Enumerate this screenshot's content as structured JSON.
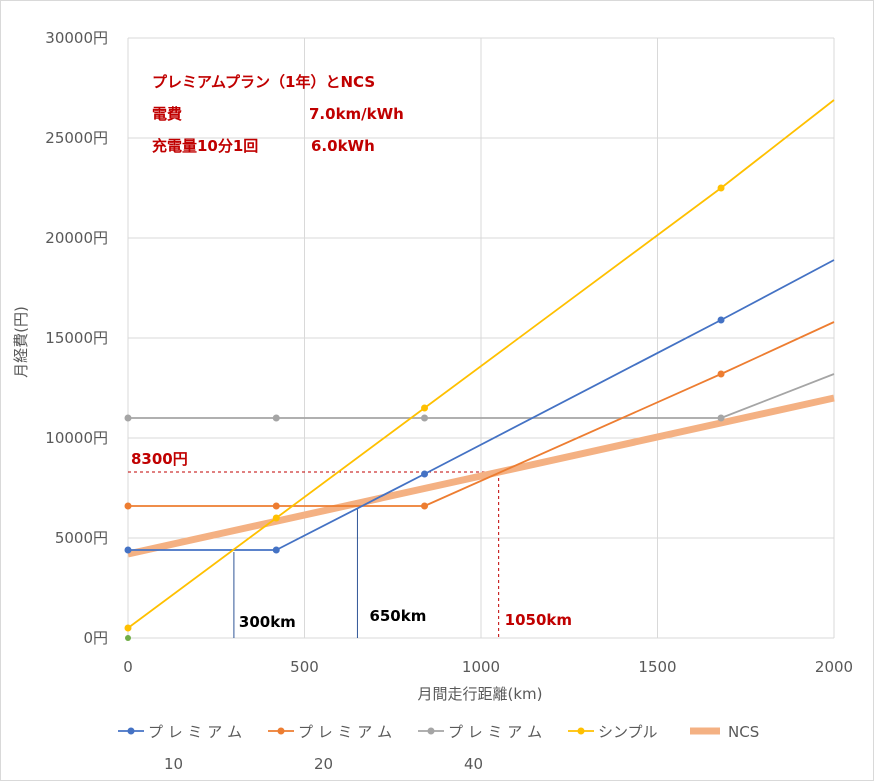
{
  "chart_data": {
    "type": "line",
    "title": "",
    "xlabel": "月間走行距離(km)",
    "ylabel": "月経費(円)",
    "xlim": [
      0,
      2000
    ],
    "ylim": [
      0,
      30000
    ],
    "x_ticks": [
      "0",
      "500",
      "1000",
      "1500",
      "2000"
    ],
    "y_ticks": [
      "0円",
      "5000円",
      "10000円",
      "15000円",
      "20000円",
      "25000円",
      "30000円"
    ],
    "grid": true,
    "notes": [
      {
        "label": "プレミアムプラン（1年）とNCS",
        "value": ""
      },
      {
        "label": "電費",
        "value": "7.0km/kWh"
      },
      {
        "label": "充電量10分1回",
        "value": "6.0kWh"
      }
    ],
    "annotations": [
      {
        "text": "300km",
        "x": 300,
        "y": 4300,
        "color": "#000000"
      },
      {
        "text": "650km",
        "x": 650,
        "y": 6500,
        "color": "#000000"
      },
      {
        "text": "1050km",
        "x": 1050,
        "y": 8300,
        "color": "#c00000"
      },
      {
        "text": "8300円",
        "x": 1050,
        "y": 8300,
        "color": "#c00000"
      }
    ],
    "series": [
      {
        "name": "プレミアム10",
        "color": "#4472c4",
        "width": 1.8,
        "marker": true,
        "points": [
          [
            0,
            4400
          ],
          [
            420,
            4400
          ],
          [
            840,
            8200
          ],
          [
            1680,
            15900
          ],
          [
            2000,
            18900
          ]
        ],
        "markers": [
          [
            0,
            4400
          ],
          [
            420,
            4400
          ],
          [
            840,
            8200
          ],
          [
            1680,
            15900
          ]
        ]
      },
      {
        "name": "プレミアム20",
        "color": "#ed7d31",
        "width": 1.8,
        "marker": true,
        "points": [
          [
            0,
            6600
          ],
          [
            420,
            6600
          ],
          [
            840,
            6600
          ],
          [
            1680,
            13200
          ],
          [
            2000,
            15800
          ]
        ],
        "markers": [
          [
            0,
            6600
          ],
          [
            420,
            6600
          ],
          [
            840,
            6600
          ],
          [
            1680,
            13200
          ]
        ]
      },
      {
        "name": "プレミアム40",
        "color": "#a5a5a5",
        "width": 1.8,
        "marker": true,
        "points": [
          [
            0,
            11000
          ],
          [
            420,
            11000
          ],
          [
            840,
            11000
          ],
          [
            1680,
            11000
          ],
          [
            2000,
            13200
          ]
        ],
        "markers": [
          [
            0,
            11000
          ],
          [
            420,
            11000
          ],
          [
            840,
            11000
          ],
          [
            1680,
            11000
          ]
        ]
      },
      {
        "name": "シンプル",
        "color": "#ffc000",
        "width": 1.8,
        "marker": true,
        "points": [
          [
            0,
            500
          ],
          [
            420,
            6000
          ],
          [
            840,
            11500
          ],
          [
            1680,
            22500
          ],
          [
            2000,
            26900
          ]
        ],
        "markers": [
          [
            0,
            500
          ],
          [
            420,
            6000
          ],
          [
            840,
            11500
          ],
          [
            1680,
            22500
          ]
        ]
      },
      {
        "name": "NCS",
        "color": "#f4b183",
        "width": 7,
        "marker": false,
        "points": [
          [
            0,
            4200
          ],
          [
            2000,
            12000
          ]
        ],
        "markers": []
      }
    ],
    "legend_position": "bottom"
  }
}
